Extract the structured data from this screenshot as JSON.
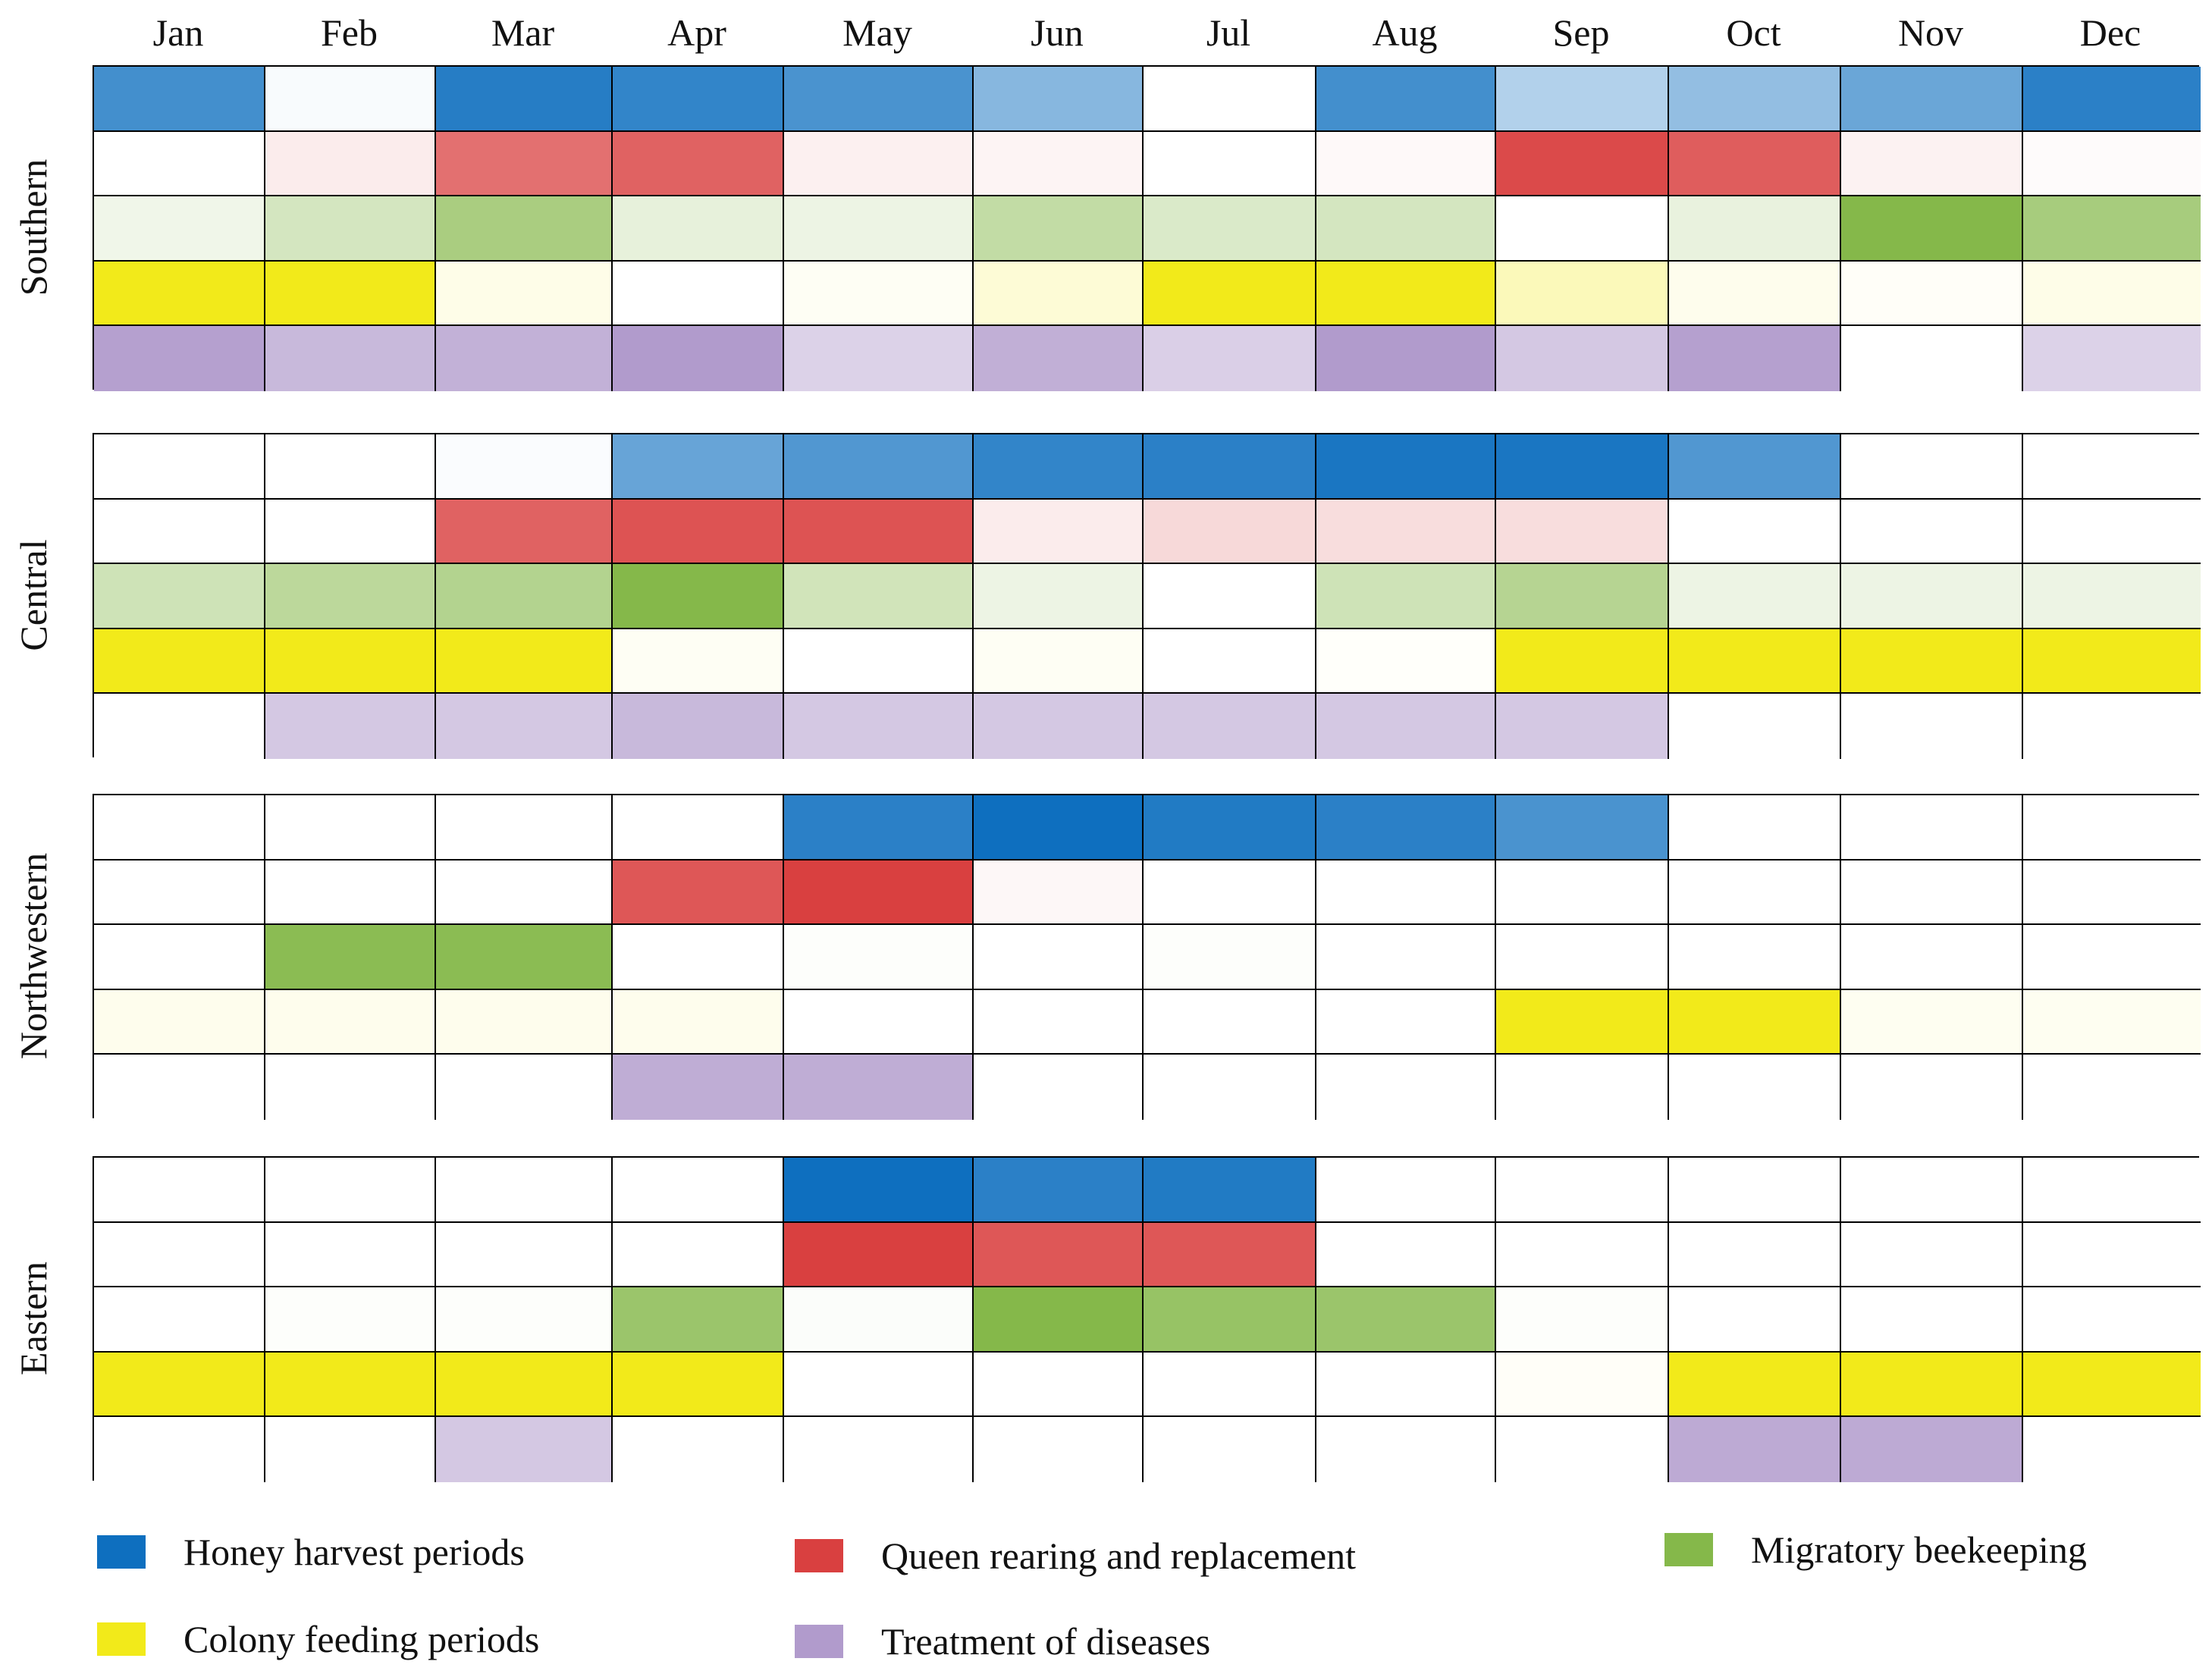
{
  "chart_data": {
    "type": "heatmap",
    "title": "",
    "months": [
      "Jan",
      "Feb",
      "Mar",
      "Apr",
      "May",
      "Jun",
      "Jul",
      "Aug",
      "Sep",
      "Oct",
      "Nov",
      "Dec"
    ],
    "activities": [
      {
        "key": "honey",
        "label": "Honey harvest periods",
        "color": "#0e6fbf"
      },
      {
        "key": "queen",
        "label": "Queen rearing and replacement",
        "color": "#d94040"
      },
      {
        "key": "migr",
        "label": "Migratory beekeeping",
        "color": "#85b84a"
      },
      {
        "key": "feed",
        "label": "Colony feeding periods",
        "color": "#f2ea1a"
      },
      {
        "key": "treat",
        "label": "Treatment of diseases",
        "color": "#b19bcc"
      }
    ],
    "intensity_scale": "0 = none (white) to 1 = full colour",
    "regions": [
      {
        "name": "Southern",
        "rows": [
          [
            0.78,
            0.03,
            0.9,
            0.85,
            0.75,
            0.5,
            0.0,
            0.78,
            0.32,
            0.45,
            0.62,
            0.88
          ],
          [
            0.0,
            0.1,
            0.75,
            0.82,
            0.08,
            0.06,
            0.0,
            0.03,
            0.95,
            0.85,
            0.07,
            0.02
          ],
          [
            0.12,
            0.35,
            0.7,
            0.2,
            0.15,
            0.5,
            0.3,
            0.35,
            0.0,
            0.18,
            1.0,
            0.72
          ],
          [
            1.0,
            1.0,
            0.1,
            0.0,
            0.05,
            0.18,
            1.0,
            1.0,
            0.3,
            0.08,
            0.03,
            0.1
          ],
          [
            0.95,
            0.7,
            0.78,
            1.0,
            0.45,
            0.8,
            0.48,
            1.0,
            0.55,
            0.95,
            0.0,
            0.45
          ]
        ]
      },
      {
        "name": "Central",
        "rows": [
          [
            0.0,
            0.0,
            0.02,
            0.63,
            0.72,
            0.85,
            0.88,
            0.95,
            0.95,
            0.72,
            0.0,
            0.0
          ],
          [
            0.0,
            0.0,
            0.82,
            0.9,
            0.9,
            0.1,
            0.2,
            0.18,
            0.18,
            0.0,
            0.0,
            0.0
          ],
          [
            0.4,
            0.55,
            0.62,
            1.0,
            0.38,
            0.15,
            0.0,
            0.4,
            0.6,
            0.15,
            0.15,
            0.15
          ],
          [
            1.0,
            1.0,
            1.0,
            0.05,
            0.0,
            0.05,
            0.0,
            0.02,
            1.0,
            1.0,
            1.0,
            1.0
          ],
          [
            0.0,
            0.55,
            0.55,
            0.7,
            0.55,
            0.55,
            0.55,
            0.55,
            0.55,
            0.0,
            0.0,
            0.0
          ]
        ]
      },
      {
        "name": "Northwestern",
        "rows": [
          [
            0.0,
            0.0,
            0.0,
            0.0,
            0.88,
            1.0,
            0.92,
            0.88,
            0.75,
            0.0,
            0.0,
            0.0
          ],
          [
            0.0,
            0.0,
            0.0,
            0.88,
            1.0,
            0.04,
            0.0,
            0.0,
            0.0,
            0.0,
            0.0,
            0.0
          ],
          [
            0.0,
            0.95,
            0.95,
            0.0,
            0.02,
            0.0,
            0.02,
            0.0,
            0.0,
            0.0,
            0.0,
            0.0
          ],
          [
            0.08,
            0.08,
            0.08,
            0.08,
            0.0,
            0.0,
            0.0,
            0.0,
            1.0,
            1.0,
            0.06,
            0.06
          ],
          [
            0.0,
            0.0,
            0.0,
            0.82,
            0.82,
            0.0,
            0.0,
            0.0,
            0.0,
            0.0,
            0.0,
            0.0
          ]
        ]
      },
      {
        "name": "Eastern",
        "rows": [
          [
            0.0,
            0.0,
            0.0,
            0.0,
            1.0,
            0.88,
            0.92,
            0.0,
            0.0,
            0.0,
            0.0,
            0.0
          ],
          [
            0.0,
            0.0,
            0.0,
            0.0,
            1.0,
            0.88,
            0.88,
            0.0,
            0.0,
            0.0,
            0.0,
            0.0
          ],
          [
            0.0,
            0.02,
            0.02,
            0.82,
            0.03,
            1.0,
            0.85,
            0.82,
            0.02,
            0.0,
            0.0,
            0.0
          ],
          [
            1.0,
            1.0,
            1.0,
            1.0,
            0.0,
            0.0,
            0.0,
            0.0,
            0.03,
            1.0,
            1.0,
            1.0
          ],
          [
            0.0,
            0.0,
            0.55,
            0.0,
            0.0,
            0.0,
            0.0,
            0.0,
            0.0,
            0.85,
            0.85,
            0.0
          ]
        ]
      }
    ]
  },
  "legend": {
    "honey": "Honey harvest periods",
    "queen": "Queen rearing and replacement",
    "migr": "Migratory beekeeping",
    "feed": "Colony feeding periods",
    "treat": "Treatment of diseases"
  }
}
